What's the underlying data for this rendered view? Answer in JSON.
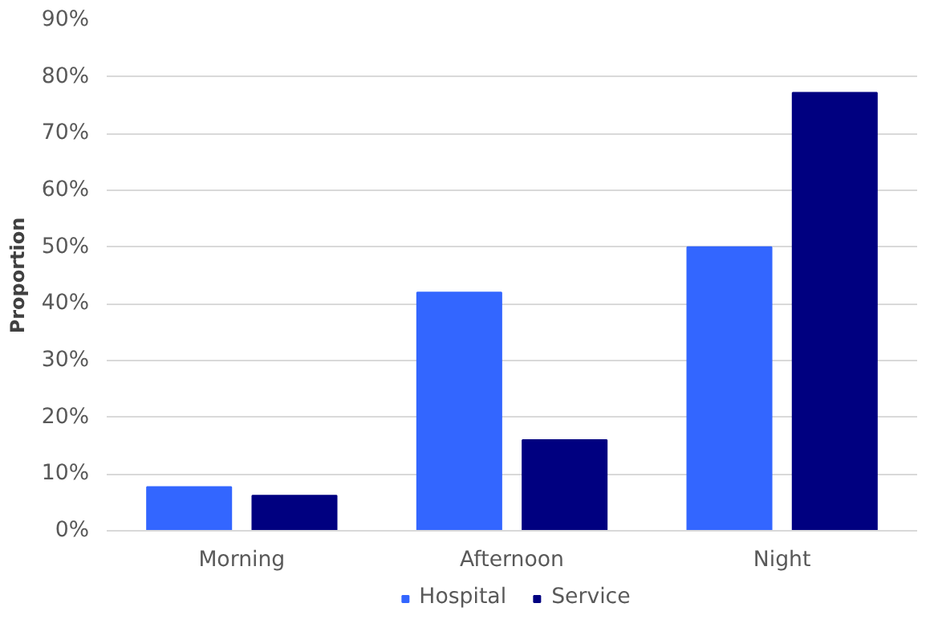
{
  "chart_data": {
    "type": "bar",
    "ylabel": "Proportion",
    "categories": [
      "Morning",
      "Afternoon",
      "Night"
    ],
    "series": [
      {
        "name": "Hospital",
        "color": "#3366ff",
        "values": [
          7.7,
          42,
          50
        ]
      },
      {
        "name": "Service",
        "color": "#000080",
        "values": [
          6.2,
          16,
          77.2
        ]
      }
    ],
    "ylim": [
      0,
      90
    ],
    "yticks": [
      {
        "value": 0,
        "label": "0%"
      },
      {
        "value": 10,
        "label": "10%"
      },
      {
        "value": 20,
        "label": "20%"
      },
      {
        "value": 30,
        "label": "30%"
      },
      {
        "value": 40,
        "label": "40%"
      },
      {
        "value": 50,
        "label": "50%"
      },
      {
        "value": 60,
        "label": "60%"
      },
      {
        "value": 70,
        "label": "70%"
      },
      {
        "value": 80,
        "label": "80%"
      },
      {
        "value": 90,
        "label": "90%"
      }
    ],
    "grid": "y",
    "legend": "bottom"
  }
}
